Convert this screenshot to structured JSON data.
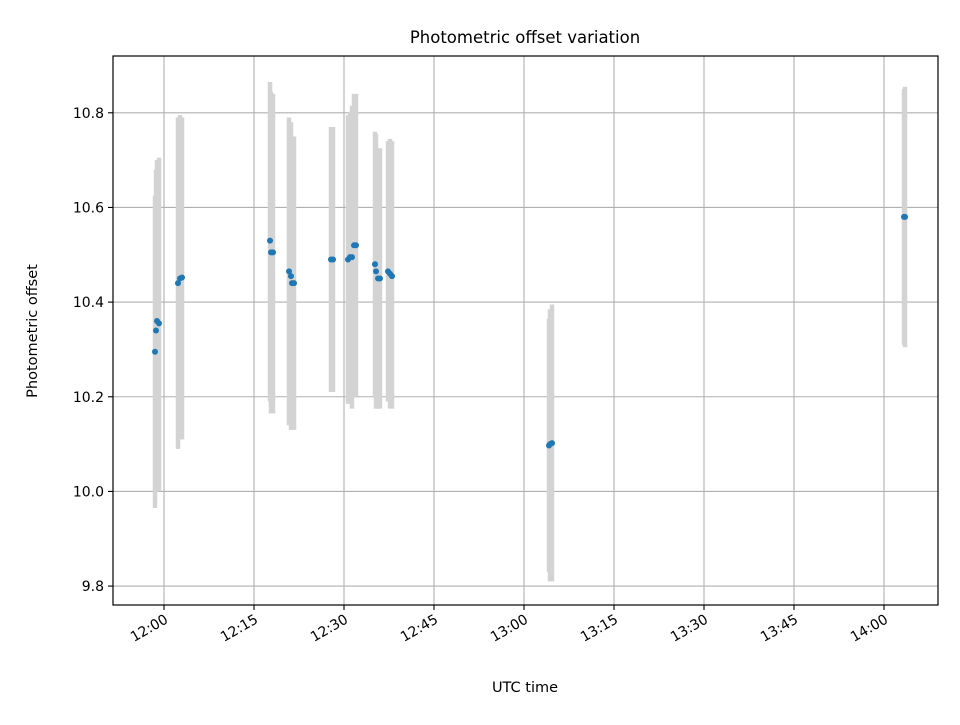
{
  "chart_data": {
    "type": "scatter",
    "title": "Photometric offset variation",
    "xlabel": "UTC time",
    "ylabel": "Photometric offset",
    "grid": true,
    "x_tick_labels": [
      "12:00",
      "12:15",
      "12:30",
      "12:45",
      "13:00",
      "13:15",
      "13:30",
      "13:45",
      "14:00"
    ],
    "x_tick_values": [
      "12:00",
      "12:15",
      "12:30",
      "12:45",
      "13:00",
      "13:15",
      "13:30",
      "13:45",
      "14:00"
    ],
    "y_tick_labels": [
      "9.8",
      "10.0",
      "10.2",
      "10.4",
      "10.6",
      "10.8"
    ],
    "y_tick_values": [
      9.8,
      10.0,
      10.2,
      10.4,
      10.6,
      10.8
    ],
    "xlim": [
      "11:51:30",
      "14:09:00"
    ],
    "ylim": [
      9.76,
      10.92
    ],
    "colors": {
      "point": "#1f77b4",
      "errorbar": "#d3d3d3",
      "grid": "#b0b0b0"
    },
    "points": [
      {
        "x": "11:58:30",
        "y": 10.295,
        "yerr_low": 9.965,
        "yerr_high": 10.625
      },
      {
        "x": "11:58:40",
        "y": 10.34,
        "yerr_low": 10.0,
        "yerr_high": 10.68
      },
      {
        "x": "11:58:50",
        "y": 10.36,
        "yerr_low": 10.01,
        "yerr_high": 10.7
      },
      {
        "x": "11:59:10",
        "y": 10.355,
        "yerr_low": 10.0,
        "yerr_high": 10.705
      },
      {
        "x": "12:02:20",
        "y": 10.44,
        "yerr_low": 10.09,
        "yerr_high": 10.79
      },
      {
        "x": "12:02:40",
        "y": 10.45,
        "yerr_low": 10.11,
        "yerr_high": 10.795
      },
      {
        "x": "12:03:00",
        "y": 10.452,
        "yerr_low": 10.11,
        "yerr_high": 10.79
      },
      {
        "x": "12:17:40",
        "y": 10.53,
        "yerr_low": 10.19,
        "yerr_high": 10.865
      },
      {
        "x": "12:17:50",
        "y": 10.505,
        "yerr_low": 10.165,
        "yerr_high": 10.845
      },
      {
        "x": "12:18:10",
        "y": 10.505,
        "yerr_low": 10.165,
        "yerr_high": 10.84
      },
      {
        "x": "12:20:50",
        "y": 10.465,
        "yerr_low": 10.14,
        "yerr_high": 10.79
      },
      {
        "x": "12:21:10",
        "y": 10.455,
        "yerr_low": 10.13,
        "yerr_high": 10.78
      },
      {
        "x": "12:21:20",
        "y": 10.44,
        "yerr_low": 10.13,
        "yerr_high": 10.75
      },
      {
        "x": "12:21:40",
        "y": 10.44,
        "yerr_low": 10.13,
        "yerr_high": 10.75
      },
      {
        "x": "12:27:50",
        "y": 10.49,
        "yerr_low": 10.21,
        "yerr_high": 10.77
      },
      {
        "x": "12:28:10",
        "y": 10.49,
        "yerr_low": 10.21,
        "yerr_high": 10.77
      },
      {
        "x": "12:30:40",
        "y": 10.49,
        "yerr_low": 10.185,
        "yerr_high": 10.795
      },
      {
        "x": "12:31:00",
        "y": 10.495,
        "yerr_low": 10.19,
        "yerr_high": 10.8
      },
      {
        "x": "12:31:20",
        "y": 10.495,
        "yerr_low": 10.175,
        "yerr_high": 10.815
      },
      {
        "x": "12:31:40",
        "y": 10.52,
        "yerr_low": 10.2,
        "yerr_high": 10.84
      },
      {
        "x": "12:32:00",
        "y": 10.52,
        "yerr_low": 10.2,
        "yerr_high": 10.84
      },
      {
        "x": "12:35:10",
        "y": 10.48,
        "yerr_low": 10.2,
        "yerr_high": 10.76
      },
      {
        "x": "12:35:20",
        "y": 10.465,
        "yerr_low": 10.175,
        "yerr_high": 10.755
      },
      {
        "x": "12:35:40",
        "y": 10.45,
        "yerr_low": 10.175,
        "yerr_high": 10.725
      },
      {
        "x": "12:36:00",
        "y": 10.45,
        "yerr_low": 10.175,
        "yerr_high": 10.725
      },
      {
        "x": "12:37:20",
        "y": 10.465,
        "yerr_low": 10.19,
        "yerr_high": 10.74
      },
      {
        "x": "12:37:40",
        "y": 10.46,
        "yerr_low": 10.175,
        "yerr_high": 10.745
      },
      {
        "x": "12:38:00",
        "y": 10.455,
        "yerr_low": 10.175,
        "yerr_high": 10.74
      },
      {
        "x": "13:04:10",
        "y": 10.097,
        "yerr_low": 9.83,
        "yerr_high": 10.365
      },
      {
        "x": "13:04:20",
        "y": 10.1,
        "yerr_low": 9.81,
        "yerr_high": 10.385
      },
      {
        "x": "13:04:40",
        "y": 10.102,
        "yerr_low": 9.81,
        "yerr_high": 10.395
      },
      {
        "x": "14:03:20",
        "y": 10.58,
        "yerr_low": 10.31,
        "yerr_high": 10.85
      },
      {
        "x": "14:03:30",
        "y": 10.58,
        "yerr_low": 10.305,
        "yerr_high": 10.855
      }
    ]
  }
}
